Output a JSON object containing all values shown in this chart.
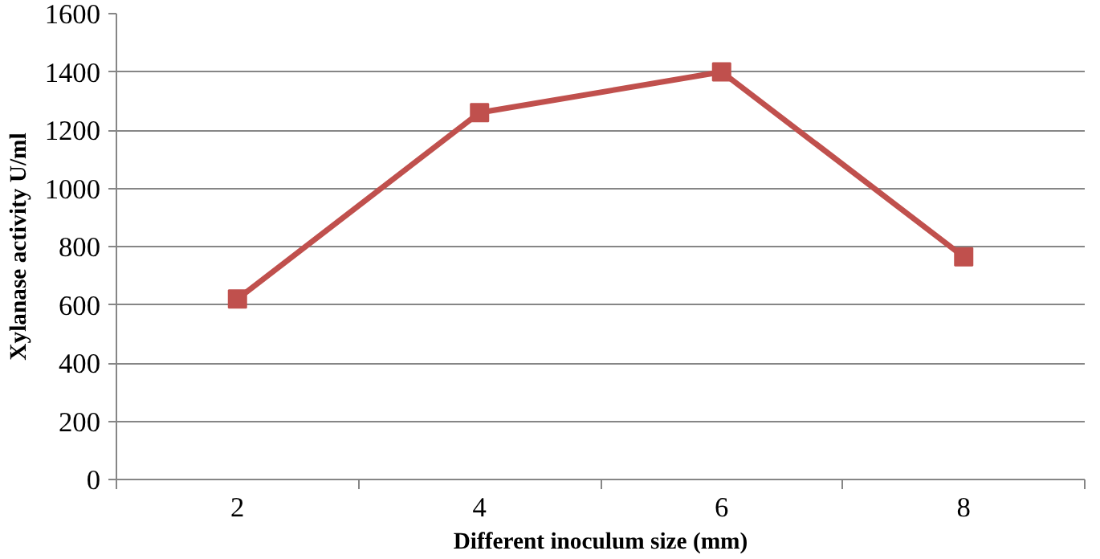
{
  "chart_data": {
    "type": "line",
    "xlabel": "Different inoculum size (mm)",
    "ylabel": "Xylanase activity U/ml",
    "categories": [
      "2",
      "4",
      "6",
      "8"
    ],
    "series": [
      {
        "color": "#c0504d",
        "values": [
          620,
          1260,
          1400,
          765
        ]
      }
    ],
    "ylim": [
      0,
      1600
    ],
    "yticks": [
      0,
      200,
      400,
      600,
      800,
      1000,
      1200,
      1400,
      1600
    ],
    "grid": "y",
    "marker": "square",
    "line_style": "solid"
  }
}
